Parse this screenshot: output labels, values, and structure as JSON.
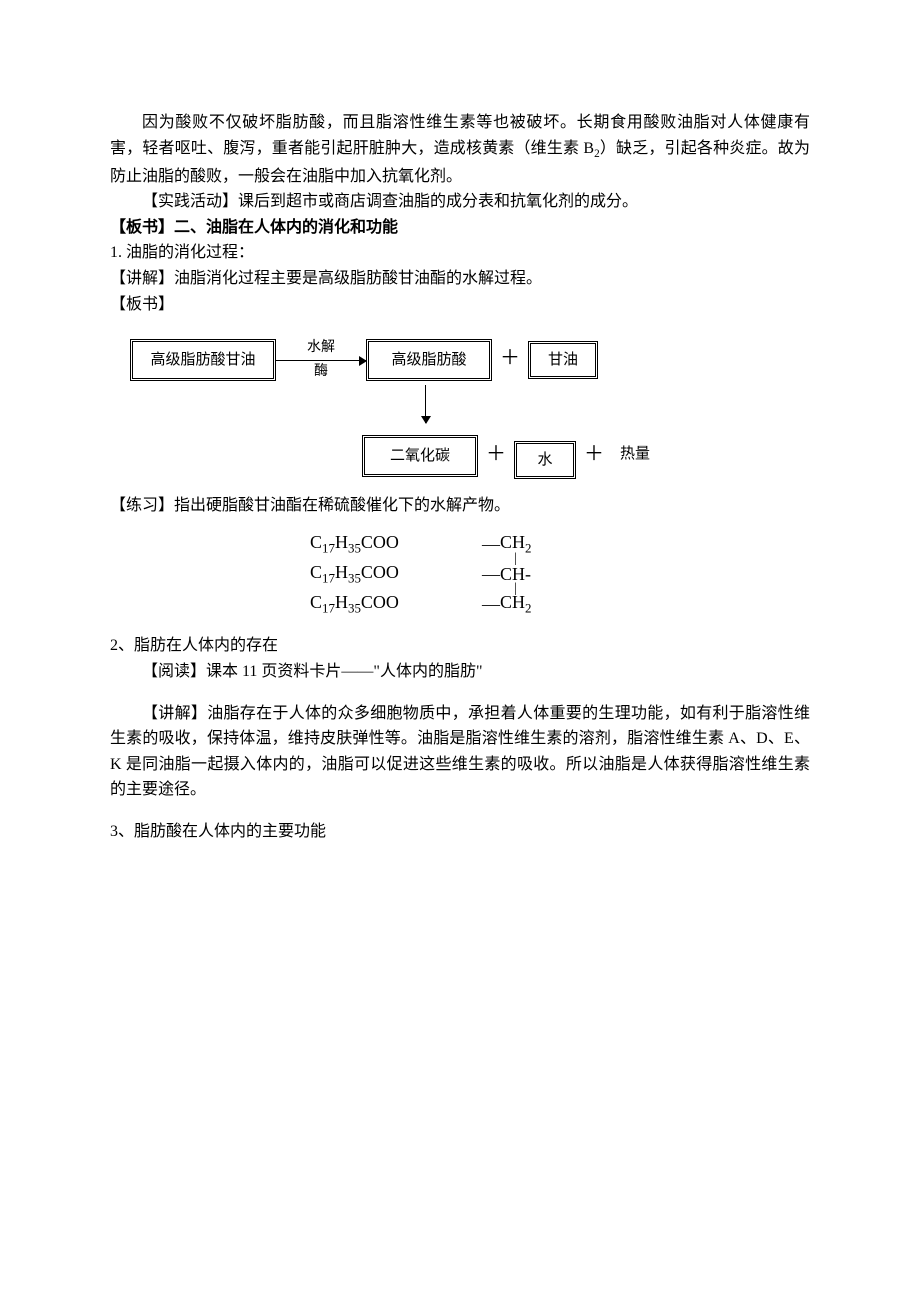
{
  "para1_pref": "因为酸败不仅破坏脂肪酸，而且脂溶性维生素等也被破坏。长期食用酸败油脂对人体健康有害，轻者呕吐、腹泻，重者能引起肝脏肿大，造成核黄素（维生素 B",
  "para1_sub": "2",
  "para1_suff": "）缺乏，引起各种炎症。故为防止油脂的酸败，一般会在油脂中加入抗氧化剂。",
  "activity": "【实践活动】课后到超市或商店调查油脂的成分表和抗氧化剂的成分。",
  "board_heading": "【板书】二、油脂在人体内的消化和功能",
  "item1": "1.   油脂的消化过程：",
  "explain1": "【讲解】油脂消化过程主要是高级脂肪酸甘油酯的水解过程。",
  "board_label": "【板书】",
  "flow": {
    "box1": "高级脂肪酸甘油",
    "arrow_label1": "水解",
    "arrow_label2": "酶",
    "box2": "高级脂肪酸",
    "plus": "＋",
    "box3": "甘油",
    "box4": "二氧化碳",
    "box5": "水",
    "heat": "热量"
  },
  "exercise": "【练习】指出硬脂酸甘油酯在稀硫酸催化下的水解产物。",
  "chem": {
    "left": "C<sub class=\"chsub\">17</sub>H<sub class=\"chsub\">35</sub>COO",
    "dash": "—",
    "r1": "CH<sub class=\"chsub\">2</sub>",
    "r2": "CH-",
    "r3": "CH<sub class=\"chsub\">2</sub>",
    "vbar": "|"
  },
  "item2": "2、脂肪在人体内的存在",
  "reading": "【阅读】课本 11 页资料卡片——\"人体内的脂肪\"",
  "explain2": "【讲解】油脂存在于人体的众多细胞物质中，承担着人体重要的生理功能，如有利于脂溶性维生素的吸收，保持体温，维持皮肤弹性等。油脂是脂溶性维生素的溶剂，脂溶性维生素 A、D、E、K 是同油脂一起摄入体内的，油脂可以促进这些维生素的吸收。所以油脂是人体获得脂溶性维生素的主要途径。",
  "item3": "3、脂肪酸在人体内的主要功能"
}
